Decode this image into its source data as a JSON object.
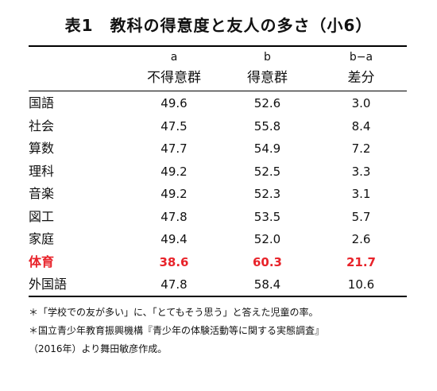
{
  "title": "表1　教科の得意度と友人の多さ（小6）",
  "columns": {
    "subject": "",
    "col_a_letter": "a",
    "col_a_name": "不得意群",
    "col_b_letter": "b",
    "col_b_name": "得意群",
    "col_diff_letter": "b−a",
    "col_diff_name": "差分"
  },
  "rows": [
    {
      "subject": "国語",
      "a": "49.6",
      "b": "52.6",
      "diff": "3.0"
    },
    {
      "subject": "社会",
      "a": "47.5",
      "b": "55.8",
      "diff": "8.4"
    },
    {
      "subject": "算数",
      "a": "47.7",
      "b": "54.9",
      "diff": "7.2"
    },
    {
      "subject": "理科",
      "a": "49.2",
      "b": "52.5",
      "diff": "3.3"
    },
    {
      "subject": "音楽",
      "a": "49.2",
      "b": "52.3",
      "diff": "3.1"
    },
    {
      "subject": "図工",
      "a": "47.8",
      "b": "53.5",
      "diff": "5.7"
    },
    {
      "subject": "家庭",
      "a": "49.4",
      "b": "52.0",
      "diff": "2.6"
    },
    {
      "subject": "体育",
      "a": "38.6",
      "b": "60.3",
      "diff": "21.7",
      "highlight": true
    },
    {
      "subject": "外国語",
      "a": "47.8",
      "b": "58.4",
      "diff": "10.6"
    }
  ],
  "notes": [
    "＊「学校での友が多い」に、「とてもそう思う」と答えた児童の率。",
    "＊国立青少年教育振興機構『青少年の体験活動等に関する実態調査』",
    "（2016年）より舞田敏彦作成。"
  ],
  "colors": {
    "text": "#111111",
    "highlight": "#e8232a",
    "rule": "#000000",
    "background": "#ffffff"
  }
}
